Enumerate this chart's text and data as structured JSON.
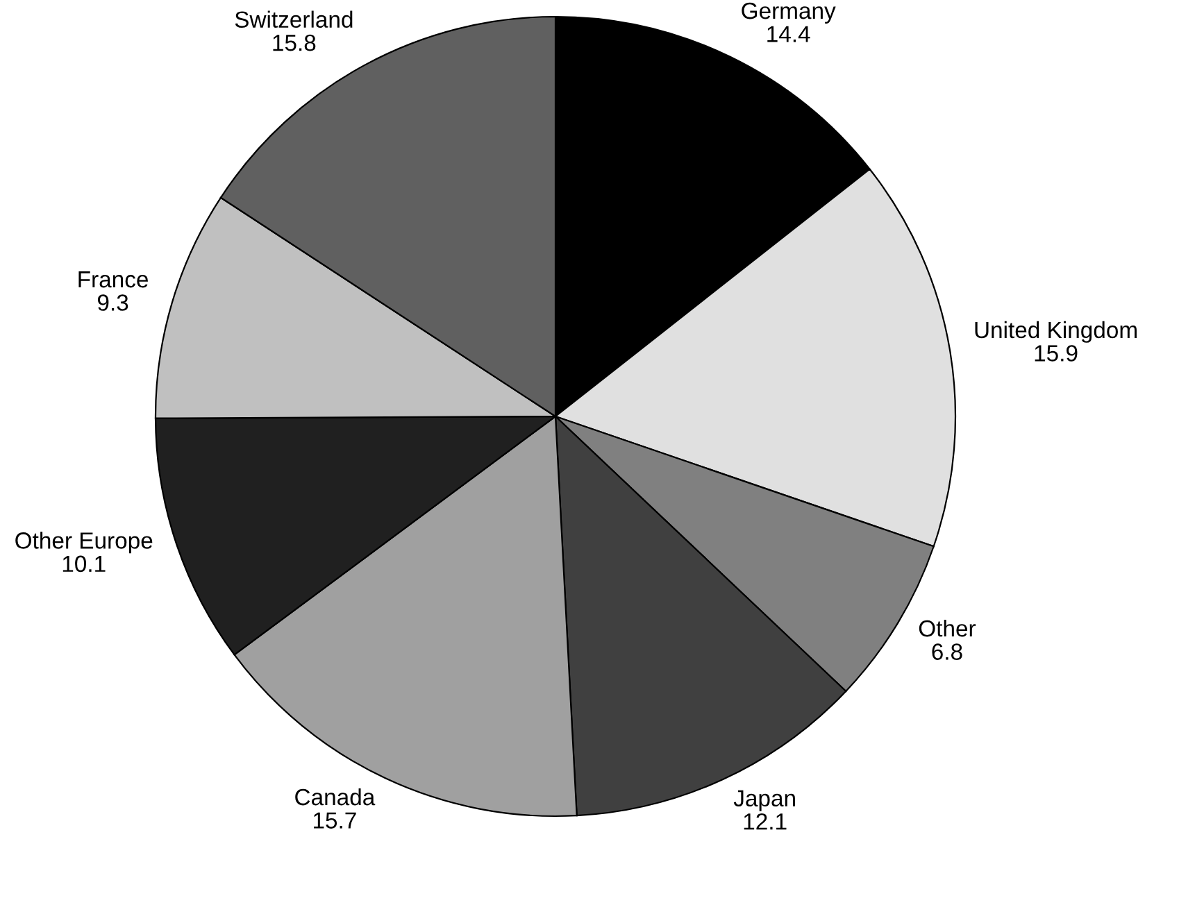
{
  "chart_data": {
    "type": "pie",
    "categories": [
      "Germany",
      "United Kingdom",
      "Other",
      "Japan",
      "Canada",
      "Other Europe",
      "France",
      "Switzerland"
    ],
    "values": [
      14.4,
      15.9,
      6.8,
      12.1,
      15.7,
      10.1,
      9.3,
      15.8
    ],
    "colors": [
      "#000000",
      "#e0e0e0",
      "#808080",
      "#404040",
      "#a0a0a0",
      "#202020",
      "#c0c0c0",
      "#606060"
    ],
    "data_labels": true,
    "legend": false
  }
}
